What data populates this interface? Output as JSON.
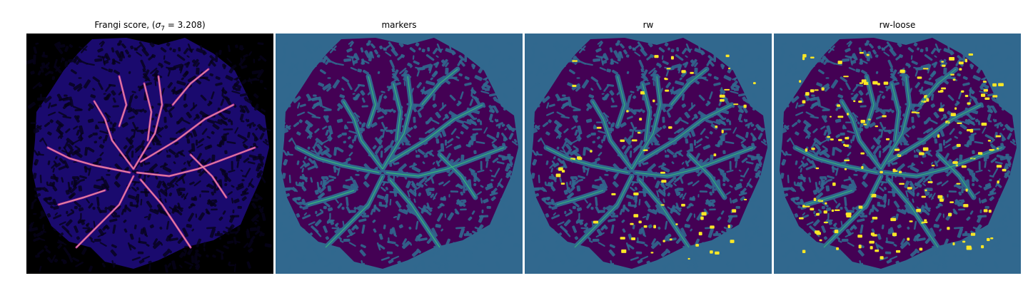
{
  "panels": [
    {
      "id": "frangi",
      "title_prefix": "Frangi score, (",
      "title_sigma": "σ",
      "title_sub": "7",
      "title_suffix": " = 3.208)",
      "background": "#000000",
      "blob_fill": "#1a0a6e",
      "vessel_color": "#b7359a",
      "highlight_color": "#fdc3a0"
    },
    {
      "id": "markers",
      "title": "markers",
      "background": "#31688e",
      "blob_fill": "#440154",
      "vessel_color": "#31688e",
      "highlight_color": "#35b779"
    },
    {
      "id": "rw",
      "title": "rw",
      "background": "#31688e",
      "blob_fill": "#440154",
      "vessel_color": "#31688e",
      "highlight_color": "#fde725"
    },
    {
      "id": "rw-loose",
      "title": "rw-loose",
      "background": "#31688e",
      "blob_fill": "#440154",
      "vessel_color": "#31688e",
      "highlight_color": "#fde725"
    }
  ]
}
